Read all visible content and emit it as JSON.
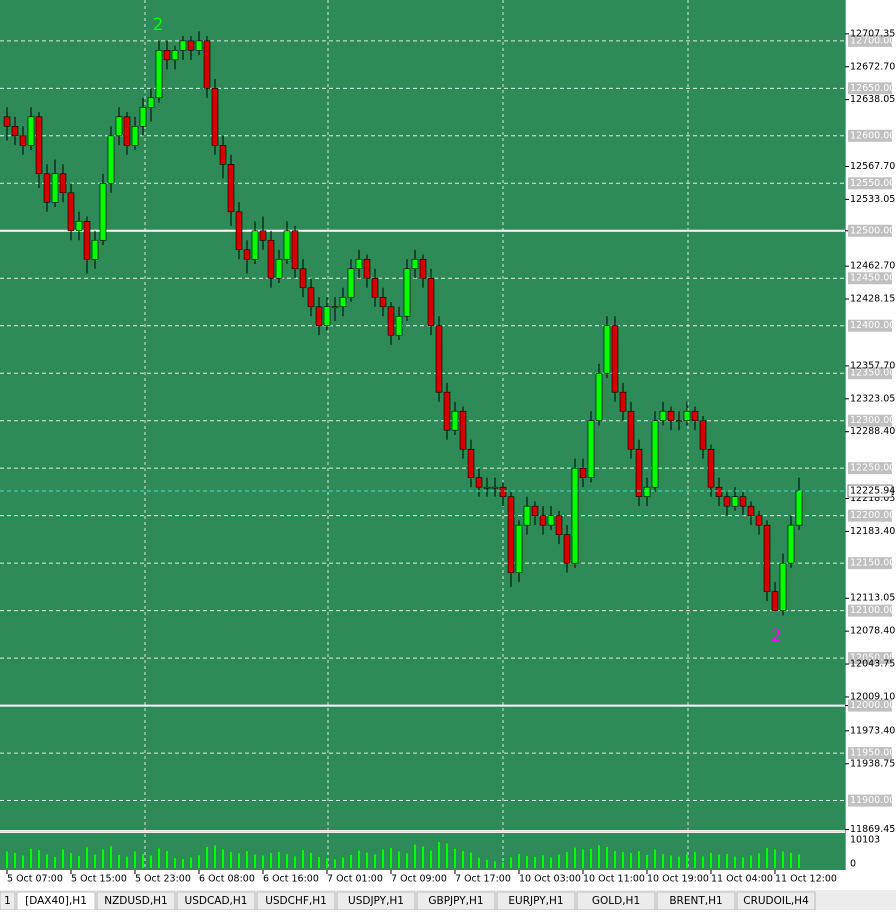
{
  "chart_data": {
    "type": "candlestick",
    "ylim": [
      11869,
      12743
    ],
    "yticks": [
      12707.35,
      {
        "value": 12672.7,
        "label": "12672.70"
      },
      12638.05,
      {
        "value": 12567.7,
        "label": "12567.70"
      },
      12533.05,
      {
        "value": 12462.7,
        "label": "12462.70"
      },
      12428.15,
      {
        "value": 12357.7,
        "label": "12357.70"
      },
      12323.05,
      {
        "value": 12288.4,
        "label": "12288.40"
      },
      12218.05,
      {
        "value": 12183.4,
        "label": "12183.40"
      },
      12113.05,
      {
        "value": 12078.4,
        "label": "12078.40"
      },
      12043.75,
      {
        "value": 12009.1,
        "label": "12009.10"
      },
      {
        "value": 11973.4,
        "label": "11973.40"
      },
      11938.75,
      11869.45
    ],
    "levels": [
      {
        "value": 12700,
        "label": "12700.00"
      },
      {
        "value": 12650,
        "label": "12650.00"
      },
      {
        "value": 12600,
        "label": "12600.00"
      },
      {
        "value": 12550,
        "label": "12550.00"
      },
      {
        "value": 12500,
        "label": "12500.00"
      },
      {
        "value": 12450,
        "label": "12450.00"
      },
      {
        "value": 12400,
        "label": "12400.00"
      },
      {
        "value": 12350,
        "label": "12350.00"
      },
      {
        "value": 12300,
        "label": "12300.00"
      },
      {
        "value": 12250,
        "label": "12250.00"
      },
      {
        "value": 12200,
        "label": "12200.00"
      },
      {
        "value": 12150,
        "label": "12150.00"
      },
      {
        "value": 12100,
        "label": "12100.00"
      },
      {
        "value": 12050,
        "label": "12050.00"
      },
      {
        "value": 12000,
        "label": "12000.00"
      },
      {
        "value": 11950,
        "label": "11950.00"
      },
      {
        "value": 11900,
        "label": "11900.00"
      }
    ],
    "strong_levels": [
      12500,
      12000
    ],
    "current_price": 12225.94,
    "xlim": [
      -0.875,
      104.75
    ],
    "xticks": [
      {
        "value": 0,
        "label": "5 Oct 07:00"
      },
      {
        "value": 8,
        "label": "5 Oct 15:00"
      },
      {
        "value": 16,
        "label": "5 Oct 23:00"
      },
      {
        "value": 24,
        "label": "6 Oct 08:00"
      },
      {
        "value": 32,
        "label": "6 Oct 16:00"
      },
      {
        "value": 40,
        "label": "7 Oct 01:00"
      },
      {
        "value": 48,
        "label": "7 Oct 09:00"
      },
      {
        "value": 56,
        "label": "7 Oct 17:00"
      },
      {
        "value": 64,
        "label": "10 Oct 03:00"
      },
      {
        "value": 72,
        "label": "10 Oct 11:00"
      },
      {
        "value": 80,
        "label": "10 Oct 19:00"
      },
      {
        "value": 88,
        "label": "11 Oct 04:00"
      },
      {
        "value": 96,
        "label": "11 Oct 12:00"
      }
    ],
    "up_color": "#00ff00",
    "down_color": "#d80000",
    "background": "#2e8b57",
    "ohlc": [
      [
        12620,
        12630,
        12595,
        12610
      ],
      [
        12610,
        12620,
        12590,
        12600
      ],
      [
        12600,
        12610,
        12580,
        12590
      ],
      [
        12590,
        12630,
        12585,
        12620
      ],
      [
        12620,
        12625,
        12545,
        12560
      ],
      [
        12560,
        12570,
        12520,
        12530
      ],
      [
        12530,
        12575,
        12525,
        12560
      ],
      [
        12560,
        12570,
        12530,
        12540
      ],
      [
        12540,
        12550,
        12490,
        12500
      ],
      [
        12500,
        12520,
        12490,
        12510
      ],
      [
        12510,
        12515,
        12455,
        12470
      ],
      [
        12470,
        12500,
        12460,
        12490
      ],
      [
        12490,
        12560,
        12485,
        12550
      ],
      [
        12550,
        12610,
        12540,
        12600
      ],
      [
        12600,
        12630,
        12590,
        12620
      ],
      [
        12620,
        12625,
        12580,
        12590
      ],
      [
        12590,
        12620,
        12585,
        12610
      ],
      [
        12610,
        12640,
        12600,
        12630
      ],
      [
        12630,
        12650,
        12615,
        12640
      ],
      [
        12640,
        12700,
        12635,
        12690
      ],
      [
        12690,
        12700,
        12670,
        12680
      ],
      [
        12680,
        12695,
        12670,
        12690
      ],
      [
        12690,
        12705,
        12680,
        12700
      ],
      [
        12700,
        12705,
        12680,
        12690
      ],
      [
        12690,
        12710,
        12685,
        12700
      ],
      [
        12700,
        12705,
        12640,
        12650
      ],
      [
        12650,
        12660,
        12580,
        12590
      ],
      [
        12590,
        12600,
        12555,
        12570
      ],
      [
        12570,
        12580,
        12505,
        12520
      ],
      [
        12520,
        12530,
        12470,
        12480
      ],
      [
        12480,
        12490,
        12455,
        12470
      ],
      [
        12470,
        12510,
        12465,
        12500
      ],
      [
        12500,
        12515,
        12480,
        12490
      ],
      [
        12490,
        12500,
        12440,
        12450
      ],
      [
        12450,
        12480,
        12445,
        12470
      ],
      [
        12470,
        12510,
        12465,
        12500
      ],
      [
        12500,
        12505,
        12450,
        12460
      ],
      [
        12460,
        12470,
        12430,
        12440
      ],
      [
        12440,
        12450,
        12410,
        12420
      ],
      [
        12420,
        12430,
        12390,
        12400
      ],
      [
        12400,
        12430,
        12395,
        12420
      ],
      [
        12420,
        12430,
        12405,
        12420
      ],
      [
        12420,
        12440,
        12410,
        12430
      ],
      [
        12430,
        12470,
        12425,
        12460
      ],
      [
        12460,
        12480,
        12450,
        12470
      ],
      [
        12470,
        12475,
        12440,
        12450
      ],
      [
        12450,
        12460,
        12420,
        12430
      ],
      [
        12430,
        12440,
        12410,
        12420
      ],
      [
        12420,
        12425,
        12380,
        12390
      ],
      [
        12390,
        12420,
        12385,
        12410
      ],
      [
        12410,
        12470,
        12405,
        12460
      ],
      [
        12460,
        12480,
        12450,
        12470
      ],
      [
        12470,
        12475,
        12440,
        12450
      ],
      [
        12450,
        12460,
        12390,
        12400
      ],
      [
        12400,
        12410,
        12320,
        12330
      ],
      [
        12330,
        12340,
        12280,
        12290
      ],
      [
        12290,
        12320,
        12285,
        12310
      ],
      [
        12310,
        12315,
        12260,
        12270
      ],
      [
        12270,
        12280,
        12230,
        12240
      ],
      [
        12240,
        12250,
        12220,
        12230
      ],
      [
        12230,
        12240,
        12220,
        12230
      ],
      [
        12230,
        12240,
        12220,
        12230
      ],
      [
        12230,
        12235,
        12210,
        12220
      ],
      [
        12220,
        12225,
        12125,
        12140
      ],
      [
        12140,
        12195,
        12130,
        12190
      ],
      [
        12190,
        12220,
        12180,
        12210
      ],
      [
        12210,
        12215,
        12190,
        12200
      ],
      [
        12200,
        12210,
        12180,
        12190
      ],
      [
        12190,
        12210,
        12185,
        12200
      ],
      [
        12200,
        12205,
        12170,
        12180
      ],
      [
        12180,
        12190,
        12140,
        12150
      ],
      [
        12150,
        12260,
        12145,
        12250
      ],
      [
        12250,
        12260,
        12230,
        12240
      ],
      [
        12240,
        12310,
        12235,
        12300
      ],
      [
        12300,
        12360,
        12295,
        12350
      ],
      [
        12350,
        12410,
        12345,
        12400
      ],
      [
        12400,
        12410,
        12320,
        12330
      ],
      [
        12330,
        12340,
        12300,
        12310
      ],
      [
        12310,
        12320,
        12260,
        12270
      ],
      [
        12270,
        12280,
        12210,
        12220
      ],
      [
        12220,
        12240,
        12210,
        12230
      ],
      [
        12230,
        12310,
        12225,
        12300
      ],
      [
        12300,
        12320,
        12295,
        12310
      ],
      [
        12310,
        12315,
        12290,
        12300
      ],
      [
        12300,
        12310,
        12290,
        12300
      ],
      [
        12300,
        12320,
        12295,
        12310
      ],
      [
        12310,
        12315,
        12290,
        12300
      ],
      [
        12300,
        12305,
        12260,
        12270
      ],
      [
        12270,
        12275,
        12220,
        12230
      ],
      [
        12230,
        12240,
        12210,
        12220
      ],
      [
        12220,
        12225,
        12200,
        12210
      ],
      [
        12210,
        12230,
        12205,
        12220
      ],
      [
        12220,
        12225,
        12200,
        12210
      ],
      [
        12210,
        12215,
        12190,
        12200
      ],
      [
        12200,
        12205,
        12180,
        12190
      ],
      [
        12190,
        12195,
        12110,
        12120
      ],
      [
        12120,
        12130,
        12100,
        12100
      ],
      [
        12100,
        12160,
        12095,
        12150
      ],
      [
        12150,
        12200,
        12145,
        12190
      ],
      [
        12190,
        12240,
        12185,
        12226
      ]
    ],
    "volume": [
      5200,
      4800,
      3900,
      6100,
      5600,
      4300,
      3500,
      5900,
      4700,
      3800,
      6500,
      4200,
      5800,
      6900,
      4100,
      3600,
      5200,
      4500,
      3900,
      6200,
      5400,
      3100,
      2800,
      3300,
      4000,
      6600,
      7100,
      5900,
      5000,
      4600,
      5300,
      4200,
      3900,
      4700,
      5100,
      4400,
      3700,
      5600,
      4800,
      3500,
      3000,
      2700,
      3300,
      4100,
      5500,
      4900,
      4300,
      5800,
      6300,
      5200,
      4600,
      7400,
      6800,
      5500,
      8200,
      7700,
      6100,
      5400,
      4900,
      3200,
      2600,
      2100,
      1900,
      3400,
      4500,
      3800,
      3500,
      4000,
      3300,
      4200,
      5000,
      6400,
      5800,
      6100,
      7200,
      6600,
      5400,
      5000,
      4700,
      5300,
      4100,
      5800,
      4400,
      3900,
      3600,
      4500,
      5100,
      3700,
      4800,
      4200,
      4500,
      3600,
      3400,
      3900,
      4600,
      6300,
      5900,
      5200,
      4800,
      4300
    ],
    "vlim": [
      0,
      10103
    ],
    "vticks": [
      10103,
      0
    ],
    "annotations": [
      {
        "text": "2",
        "color": "#00ff00"
      },
      {
        "text": "2",
        "color": "#ff00ff"
      }
    ]
  },
  "tabs": [
    "1",
    "[DAX40],H1",
    "NZDUSD,H1",
    "USDCAD,H1",
    "USDCHF,H1",
    "USDJPY,H1",
    "GBPJPY,H1",
    "EURJPY,H1",
    "GOLD,H1",
    "BRENT,H1",
    "CRUDOIL,H4"
  ]
}
